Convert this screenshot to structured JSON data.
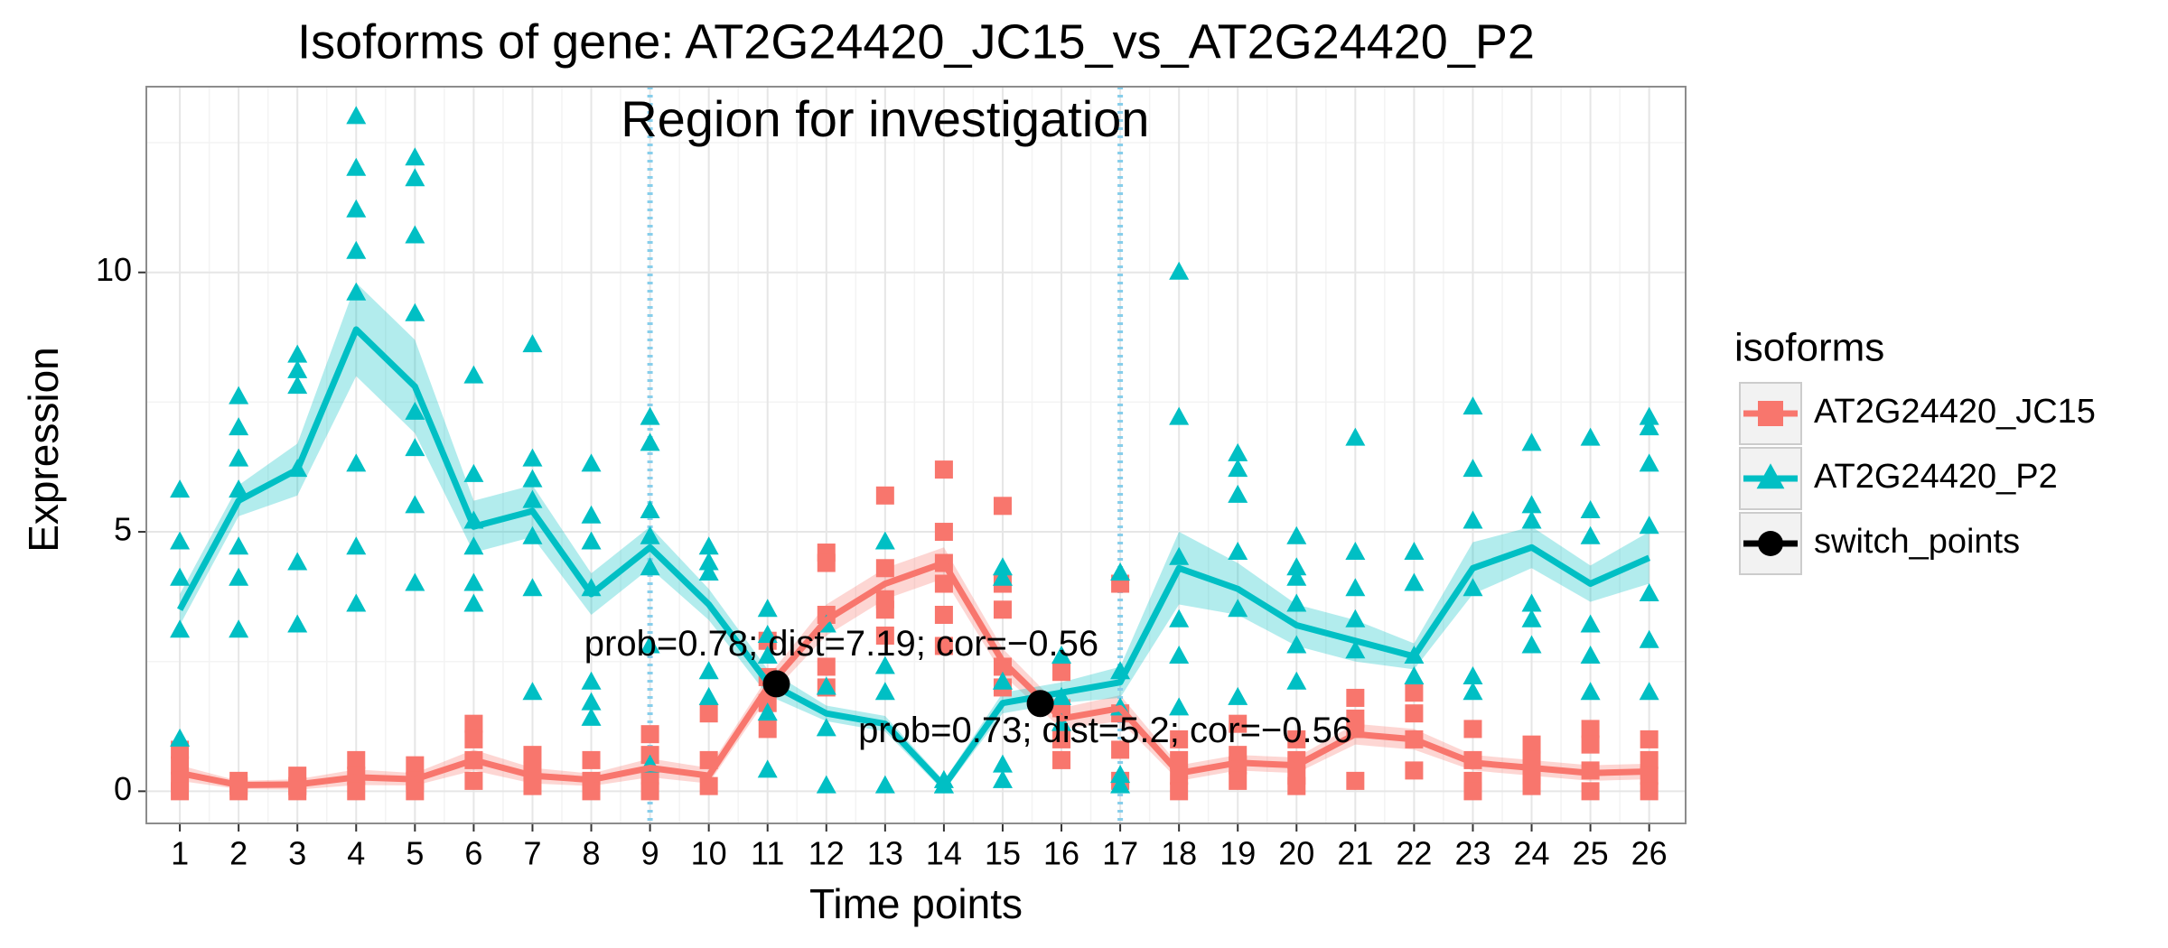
{
  "chart_data": {
    "type": "line",
    "title": "Isoforms of gene: AT2G24420_JC15_vs_AT2G24420_P2",
    "x_label": "Time points",
    "y_label": "Expression",
    "legend_title": "isoforms",
    "legend": "right",
    "grid": true,
    "x": [
      1,
      2,
      3,
      4,
      5,
      6,
      7,
      8,
      9,
      10,
      11,
      12,
      13,
      14,
      15,
      16,
      17,
      18,
      19,
      20,
      21,
      22,
      23,
      24,
      25,
      26
    ],
    "xlim": [
      0.43,
      26.62
    ],
    "xticks": [
      1,
      2,
      3,
      4,
      5,
      6,
      7,
      8,
      9,
      10,
      11,
      12,
      13,
      14,
      15,
      16,
      17,
      18,
      19,
      20,
      21,
      22,
      23,
      24,
      25,
      26
    ],
    "ylim": [
      -0.62,
      13.58
    ],
    "yticks": [
      0,
      5,
      10
    ],
    "region": {
      "label": "Region for investigation",
      "bounds": [
        9,
        17
      ],
      "line_color": "#87CEEB",
      "label_color": "#0000FF"
    },
    "series": [
      {
        "name": "AT2G24420_JC15",
        "color": "#F8766D",
        "marker": "square",
        "values": [
          0.35,
          0.12,
          0.13,
          0.27,
          0.23,
          0.6,
          0.3,
          0.22,
          0.45,
          0.3,
          2.0,
          3.3,
          4.0,
          4.4,
          2.5,
          1.4,
          1.6,
          0.35,
          0.55,
          0.5,
          1.1,
          1.0,
          0.55,
          0.45,
          0.35,
          0.38
        ],
        "errors": [
          0.15,
          0.08,
          0.1,
          0.15,
          0.12,
          0.2,
          0.15,
          0.12,
          0.18,
          0.15,
          0.2,
          0.3,
          0.3,
          0.3,
          0.25,
          0.2,
          0.25,
          0.15,
          0.15,
          0.15,
          0.2,
          0.2,
          0.15,
          0.15,
          0.15,
          0.15
        ],
        "replicates": [
          [
            0.8,
            0.5,
            0.2,
            0
          ],
          [
            0.2,
            0.1,
            0
          ],
          [
            0.3,
            0.1,
            0
          ],
          [
            0.6,
            0.3,
            0
          ],
          [
            0.5,
            0.2,
            0
          ],
          [
            1.3,
            1.0,
            0.6,
            0.2
          ],
          [
            0.7,
            0.4,
            0.1
          ],
          [
            0.6,
            0.2,
            0
          ],
          [
            1.1,
            0.7,
            0.3,
            0
          ],
          [
            1.5,
            0.6,
            0.1
          ],
          [
            2.9,
            2.2,
            1.7,
            1.2
          ],
          [
            4.6,
            4.4,
            3.4,
            2.4,
            2.0
          ],
          [
            5.7,
            4.3,
            3.7,
            3.5,
            3.0
          ],
          [
            6.2,
            5.0,
            4.4,
            4.0,
            3.4,
            2.8
          ],
          [
            5.5,
            4.0,
            3.5,
            2.4,
            2.0
          ],
          [
            2.3,
            1.6,
            1.0,
            0.6
          ],
          [
            4.0,
            1.5,
            0.8,
            0.2
          ],
          [
            1.0,
            0.6,
            0.3,
            0
          ],
          [
            1.3,
            0.7,
            0.5,
            0.2
          ],
          [
            1.0,
            0.6,
            0.3,
            0.1
          ],
          [
            1.8,
            1.4,
            1.2,
            0.2
          ],
          [
            1.9,
            1.5,
            1.0,
            0.4
          ],
          [
            1.2,
            0.6,
            0.2,
            0
          ],
          [
            0.9,
            0.6,
            0.3,
            0.1
          ],
          [
            1.2,
            0.9,
            0.4,
            0
          ],
          [
            1.0,
            0.6,
            0.3,
            0
          ]
        ]
      },
      {
        "name": "AT2G24420_P2",
        "color": "#00BFC4",
        "marker": "triangle",
        "values": [
          3.5,
          5.6,
          6.2,
          8.9,
          7.8,
          5.1,
          5.4,
          3.8,
          4.7,
          3.6,
          2.1,
          1.5,
          1.3,
          0.1,
          1.7,
          1.9,
          2.1,
          4.3,
          3.9,
          3.2,
          2.9,
          2.6,
          4.3,
          4.7,
          4.0,
          4.5
        ],
        "errors": [
          0.3,
          0.3,
          0.5,
          0.9,
          0.9,
          0.5,
          0.5,
          0.4,
          0.4,
          0.3,
          0.25,
          0.15,
          0.15,
          0.1,
          0.2,
          0.2,
          0.3,
          0.7,
          0.5,
          0.4,
          0.4,
          0.25,
          0.5,
          0.4,
          0.35,
          0.5
        ],
        "replicates": [
          [
            5.8,
            4.8,
            4.1,
            3.1,
            1.0
          ],
          [
            7.6,
            7.0,
            6.4,
            5.8,
            4.7,
            4.1,
            3.1
          ],
          [
            8.4,
            8.1,
            7.8,
            6.2,
            4.4,
            3.2
          ],
          [
            13.0,
            12.0,
            11.2,
            10.4,
            9.6,
            6.3,
            4.7,
            3.6
          ],
          [
            12.2,
            11.8,
            10.7,
            9.2,
            7.3,
            6.6,
            5.5,
            4.0
          ],
          [
            8.0,
            6.1,
            5.2,
            4.7,
            4.0,
            3.6
          ],
          [
            8.6,
            6.4,
            6.0,
            5.6,
            4.9,
            3.9,
            1.9
          ],
          [
            6.3,
            5.3,
            4.8,
            3.9,
            2.1,
            1.7,
            1.4
          ],
          [
            7.2,
            6.7,
            5.4,
            4.9,
            4.3,
            2.8,
            0.5
          ],
          [
            4.7,
            4.4,
            4.2,
            2.3,
            1.8
          ],
          [
            3.5,
            3.0,
            2.6,
            1.5,
            0.4
          ],
          [
            3.2,
            2.0,
            1.2,
            0.1
          ],
          [
            4.8,
            2.4,
            1.9,
            0.1
          ],
          [
            0.2,
            0.1,
            0.1
          ],
          [
            4.3,
            4.1,
            2.1,
            0.5,
            0.2
          ],
          [
            2.6,
            1.8,
            1.3
          ],
          [
            4.2,
            2.3,
            1.6,
            0.3,
            0.1
          ],
          [
            10.0,
            7.2,
            4.5,
            3.3,
            2.6,
            1.6
          ],
          [
            6.5,
            6.2,
            5.7,
            4.6,
            3.5,
            1.8
          ],
          [
            4.9,
            4.3,
            4.1,
            3.6,
            2.8,
            2.1
          ],
          [
            6.8,
            4.6,
            3.9,
            3.3,
            2.7
          ],
          [
            4.6,
            4.0,
            2.6,
            2.2
          ],
          [
            7.4,
            6.2,
            5.2,
            3.9,
            2.2,
            1.9
          ],
          [
            6.7,
            5.5,
            5.2,
            3.6,
            3.3,
            2.8
          ],
          [
            6.8,
            5.4,
            4.9,
            3.2,
            2.6,
            1.9
          ],
          [
            7.2,
            7.0,
            6.3,
            5.1,
            3.8,
            2.9,
            1.9
          ]
        ]
      }
    ],
    "switch_points": {
      "name": "switch_points",
      "color": "#000000",
      "marker": "circle",
      "x": [
        11.15,
        15.64
      ],
      "y": [
        2.07,
        1.69
      ],
      "labels": [
        "prob=0.78; dist=7.19; cor=−0.56",
        "prob=0.73; dist=5.2; cor=−0.56"
      ]
    }
  }
}
